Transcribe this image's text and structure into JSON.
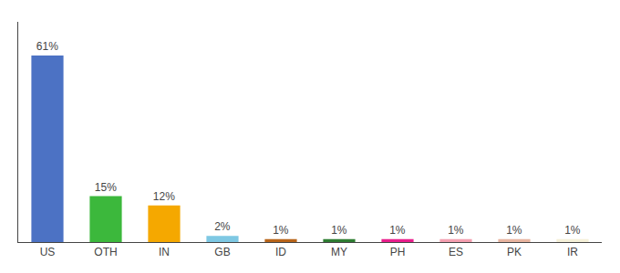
{
  "chart_data": {
    "type": "bar",
    "categories": [
      "US",
      "OTH",
      "IN",
      "GB",
      "ID",
      "MY",
      "PH",
      "ES",
      "PK",
      "IR"
    ],
    "values": [
      61,
      15,
      12,
      2,
      1,
      1,
      1,
      1,
      1,
      1
    ],
    "value_labels": [
      "61%",
      "15%",
      "12%",
      "2%",
      "1%",
      "1%",
      "1%",
      "1%",
      "1%",
      "1%"
    ],
    "colors": [
      "#4c72c4",
      "#3cb83c",
      "#f5a800",
      "#7ec8e3",
      "#b8651a",
      "#2e7d32",
      "#e91e8c",
      "#f4a0b0",
      "#e8b4a0",
      "#f5f0d8"
    ],
    "ylim": [
      0,
      72
    ],
    "data_labels": true,
    "tick_labels": "x",
    "grid": false
  }
}
